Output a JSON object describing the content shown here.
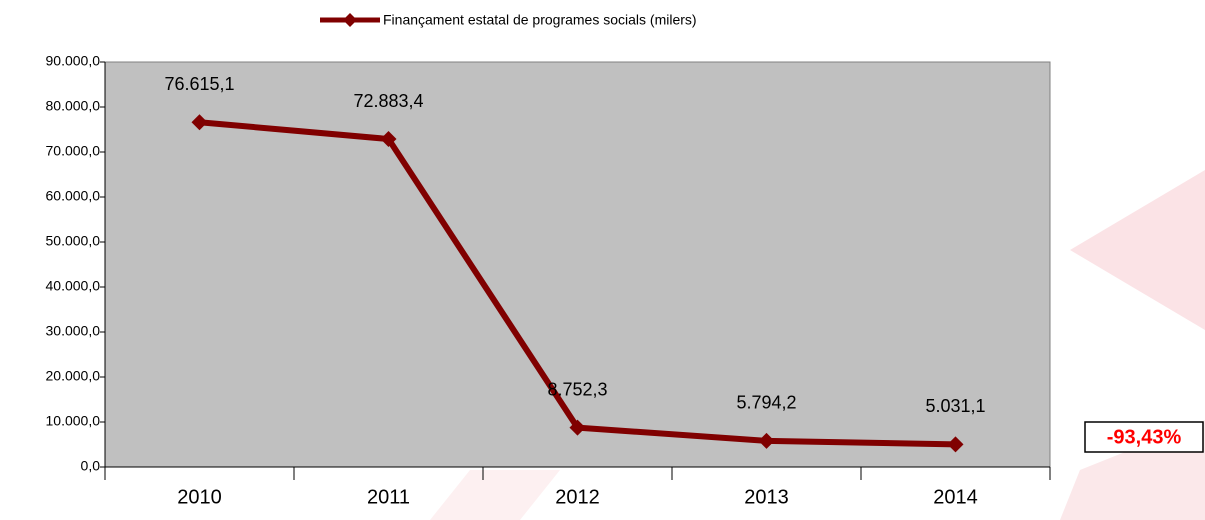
{
  "chart_data": {
    "type": "line",
    "categories": [
      "2010",
      "2011",
      "2012",
      "2013",
      "2014"
    ],
    "series": [
      {
        "name": "Finançament estatal de programes socials (milers)",
        "color": "#800000",
        "values": [
          76615.1,
          72883.4,
          8752.3,
          5794.2,
          5031.1
        ],
        "value_labels": [
          "76.615,1",
          "72.883,4",
          "8.752,3",
          "5.794,2",
          "5.031,1"
        ]
      }
    ],
    "ylim": [
      0,
      90000
    ],
    "yticks": [
      {
        "value": 0,
        "label": "0,0"
      },
      {
        "value": 10000,
        "label": "10.000,0"
      },
      {
        "value": 20000,
        "label": "20.000,0"
      },
      {
        "value": 30000,
        "label": "30.000,0"
      },
      {
        "value": 40000,
        "label": "40.000,0"
      },
      {
        "value": 50000,
        "label": "50.000,0"
      },
      {
        "value": 60000,
        "label": "60.000,0"
      },
      {
        "value": 70000,
        "label": "70.000,0"
      },
      {
        "value": 80000,
        "label": "80.000,0"
      },
      {
        "value": 90000,
        "label": "90.000,0"
      }
    ],
    "legend": "top",
    "annotation": "-93,43%"
  }
}
